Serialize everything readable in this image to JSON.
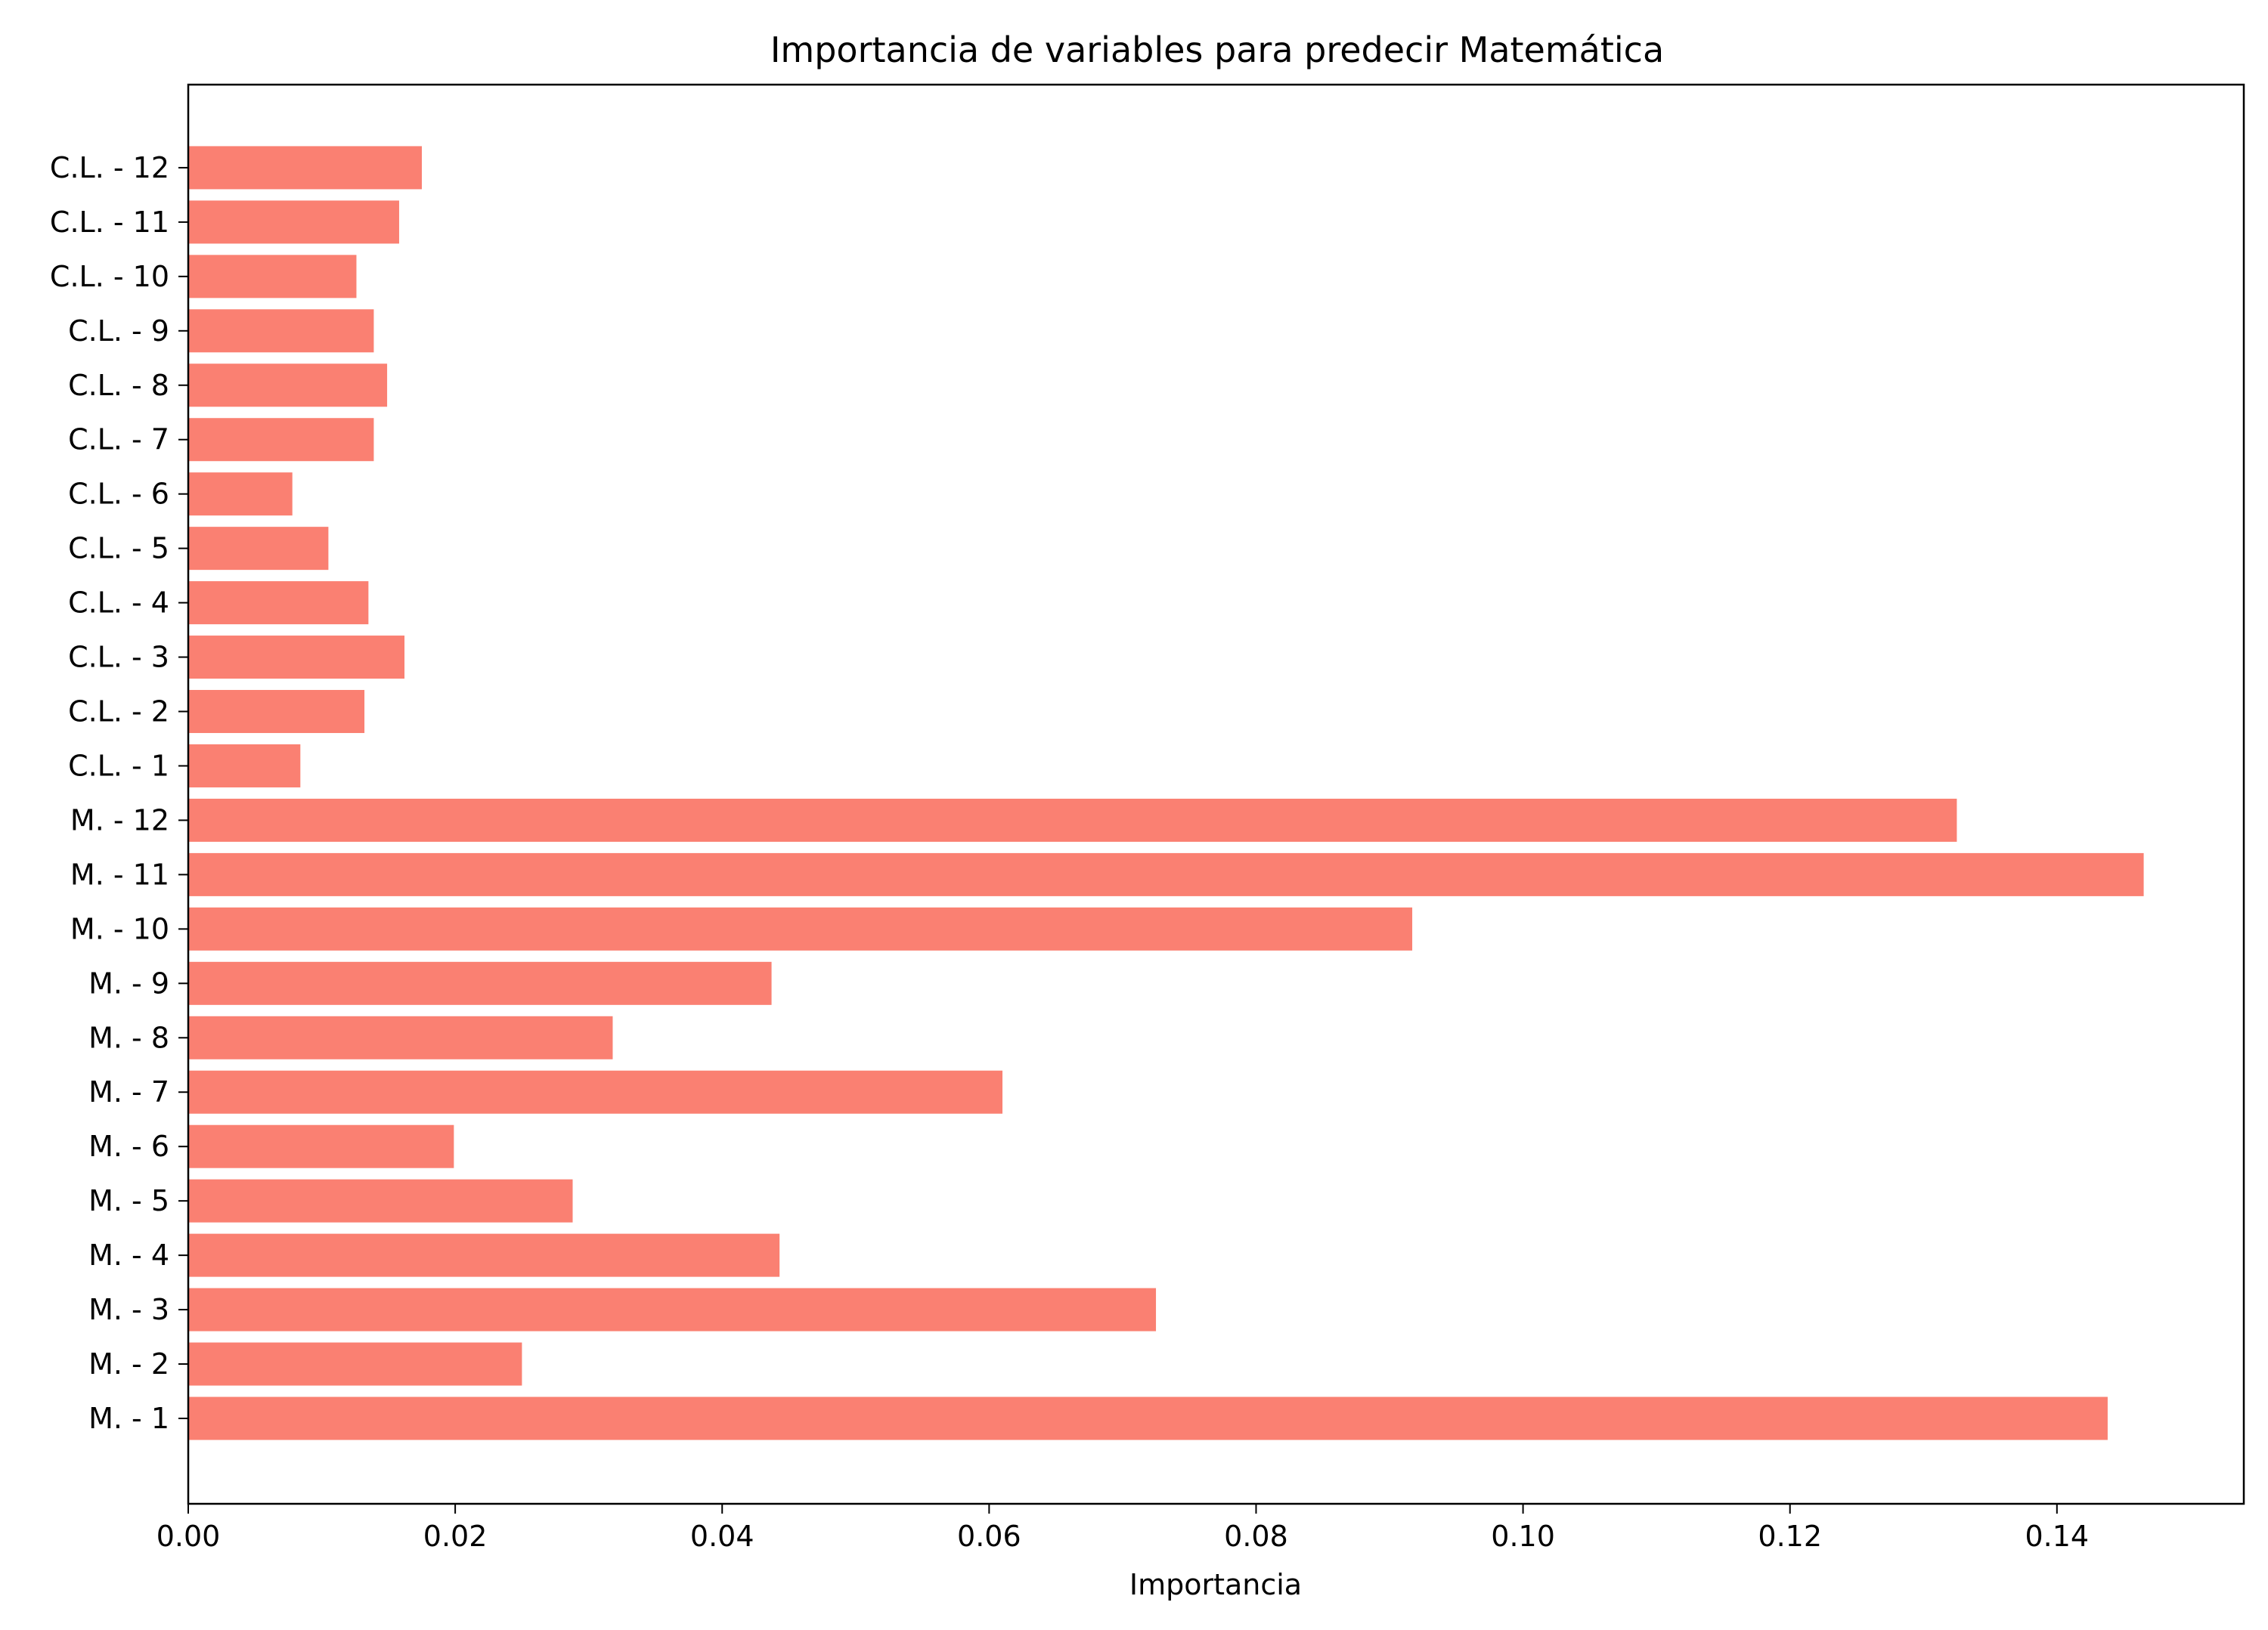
{
  "chart_data": {
    "type": "bar",
    "orientation": "horizontal",
    "title": "Importancia de variables para predecir Matemática",
    "xlabel": "Importancia",
    "ylabel": "",
    "xlim": [
      0,
      0.154
    ],
    "xticks": [
      0.0,
      0.02,
      0.04,
      0.06,
      0.08,
      0.1,
      0.12,
      0.14
    ],
    "xtick_labels": [
      "0.00",
      "0.02",
      "0.04",
      "0.06",
      "0.08",
      "0.10",
      "0.12",
      "0.14"
    ],
    "grid": false,
    "bar_color": "#FA8072",
    "categories": [
      "M. - 1",
      "M. - 2",
      "M. - 3",
      "M. - 4",
      "M. - 5",
      "M. - 6",
      "M. - 7",
      "M. - 8",
      "M. - 9",
      "M. - 10",
      "M. - 11",
      "M. - 12",
      "C.L. - 1",
      "C.L. - 2",
      "C.L. - 3",
      "C.L. - 4",
      "C.L. - 5",
      "C.L. - 6",
      "C.L. - 7",
      "C.L. - 8",
      "C.L. - 9",
      "C.L. - 10",
      "C.L. - 11",
      "C.L. - 12"
    ],
    "values": [
      0.1438,
      0.025,
      0.0725,
      0.0443,
      0.0288,
      0.0199,
      0.061,
      0.0318,
      0.0437,
      0.0917,
      0.1465,
      0.1325,
      0.0084,
      0.0132,
      0.0162,
      0.0135,
      0.0105,
      0.0078,
      0.0139,
      0.0149,
      0.0139,
      0.0126,
      0.0158,
      0.0175
    ]
  }
}
